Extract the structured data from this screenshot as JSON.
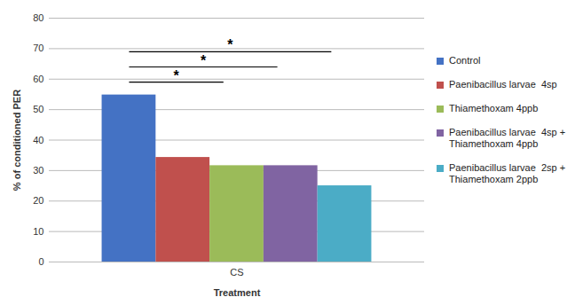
{
  "chart_data": {
    "type": "bar",
    "categories": [
      "CS"
    ],
    "series": [
      {
        "name": "Control",
        "color": "#4472c4",
        "values": [
          54.8
        ]
      },
      {
        "name": "Paenibacillus larvae  4sp",
        "color": "#c0504d",
        "values": [
          34.3
        ]
      },
      {
        "name": "Thiamethoxam 4ppb",
        "color": "#9bbb59",
        "values": [
          31.6
        ]
      },
      {
        "name": "Paenibacillus larvae  4sp + Thiamethoxam 4ppb",
        "color": "#8064a2",
        "values": [
          31.6
        ]
      },
      {
        "name": "Paenibacillus larvae  2sp + Thiamethoxam 2ppb",
        "color": "#4bacc6",
        "values": [
          25.0
        ]
      }
    ],
    "xlabel": "Treatment",
    "ylabel": "% of conditioned PER",
    "ylim": [
      0,
      80
    ],
    "yticks": [
      0,
      10,
      20,
      30,
      40,
      50,
      60,
      70,
      80
    ],
    "grid": true,
    "legend": "right",
    "annotations": [
      {
        "text": "*",
        "from": "Control",
        "to": "Paenibacillus larvae  4sp",
        "y": 59
      },
      {
        "text": "*",
        "from": "Control",
        "to": "Thiamethoxam 4ppb",
        "y": 64
      },
      {
        "text": "*",
        "from": "Control",
        "to": "Paenibacillus larvae  4sp + Thiamethoxam 4ppb",
        "y": 69
      }
    ]
  }
}
